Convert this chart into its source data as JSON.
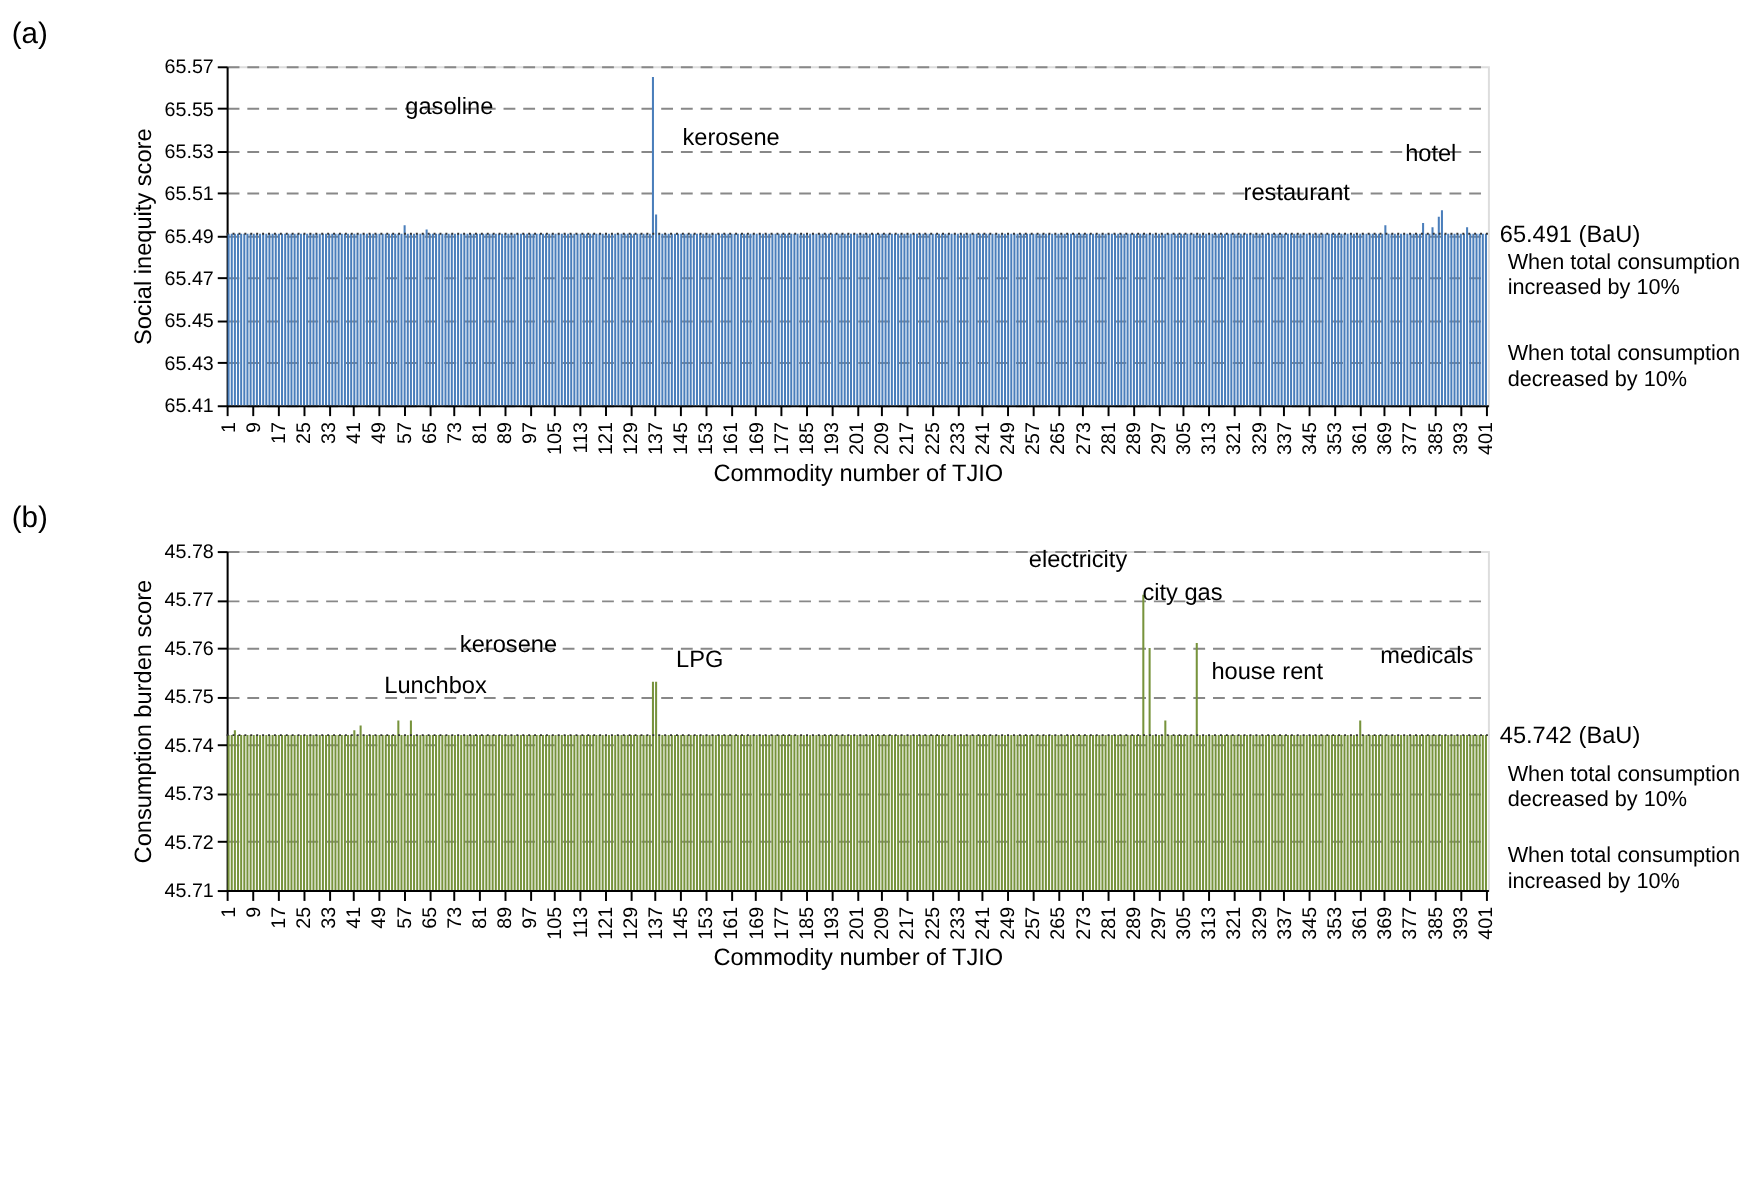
{
  "chart_data": [
    {
      "type": "bar",
      "title": "(a)",
      "xlabel": "Commodity number of TJIO",
      "ylabel": "Social inequity score",
      "color": "#4a7ebb",
      "categories": [
        "1",
        null,
        null,
        null,
        null,
        null,
        null,
        null,
        "9",
        null,
        null,
        null,
        null,
        null,
        null,
        null,
        "17",
        null,
        null,
        null,
        null,
        null,
        null,
        null,
        "25",
        null,
        null,
        null,
        null,
        null,
        null,
        null,
        "33",
        null,
        null,
        null,
        null,
        null,
        null,
        null,
        "41",
        null,
        null,
        null,
        null,
        null,
        null,
        null,
        "49",
        null,
        null,
        null,
        null,
        null,
        null,
        null,
        "57",
        null,
        null,
        null,
        null,
        null,
        null,
        null,
        "65",
        null,
        null,
        null,
        null,
        null,
        null,
        null,
        "73",
        null,
        null,
        null,
        null,
        null,
        null,
        null,
        "81",
        null,
        null,
        null,
        null,
        null,
        null,
        null,
        "89",
        null,
        null,
        null,
        null,
        null,
        null,
        null,
        "97",
        null,
        null,
        null,
        null,
        null,
        null,
        null,
        "105",
        null,
        null,
        null,
        null,
        null,
        null,
        null,
        "113",
        null,
        null,
        null,
        null,
        null,
        null,
        null,
        "121",
        null,
        null,
        null,
        null,
        null,
        null,
        null,
        "129",
        null,
        null,
        null,
        null,
        null,
        null,
        null,
        "137",
        null,
        null,
        null,
        null,
        null,
        null,
        null,
        "145",
        null,
        null,
        null,
        null,
        null,
        null,
        null,
        "153",
        null,
        null,
        null,
        null,
        null,
        null,
        null,
        "161",
        null,
        null,
        null,
        null,
        null,
        null,
        null,
        "169",
        null,
        null,
        null,
        null,
        null,
        null,
        null,
        "177",
        null,
        null,
        null,
        null,
        null,
        null,
        null,
        "185",
        null,
        null,
        null,
        null,
        null,
        null,
        null,
        "193",
        null,
        null,
        null,
        null,
        null,
        null,
        null,
        "201",
        null,
        null,
        null,
        null,
        null,
        null,
        null,
        "209",
        null,
        null,
        null,
        null,
        null,
        null,
        null,
        "217",
        null,
        null,
        null,
        null,
        null,
        null,
        null,
        "225",
        null,
        null,
        null,
        null,
        null,
        null,
        null,
        "233",
        null,
        null,
        null,
        null,
        null,
        null,
        null,
        "241",
        null,
        null,
        null,
        null,
        null,
        null,
        null,
        "249",
        null,
        null,
        null,
        null,
        null,
        null,
        null,
        "257",
        null,
        null,
        null,
        null,
        null,
        null,
        null,
        "265",
        null,
        null,
        null,
        null,
        null,
        null,
        null,
        "273",
        null,
        null,
        null,
        null,
        null,
        null,
        null,
        "281",
        null,
        null,
        null,
        null,
        null,
        null,
        null,
        "289",
        null,
        null,
        null,
        null,
        null,
        null,
        null,
        "297",
        null,
        null,
        null,
        null,
        null,
        null,
        null,
        "305",
        null,
        null,
        null,
        null,
        null,
        null,
        null,
        "313",
        null,
        null,
        null,
        null,
        null,
        null,
        null,
        "321",
        null,
        null,
        null,
        null,
        null,
        null,
        null,
        "329",
        null,
        null,
        null,
        null,
        null,
        null,
        null,
        "337",
        null,
        null,
        null,
        null,
        null,
        null,
        null,
        "345",
        null,
        null,
        null,
        null,
        null,
        null,
        null,
        "353",
        null,
        null,
        null,
        null,
        null,
        null,
        null,
        "361",
        null,
        null,
        null,
        null,
        null,
        null,
        null,
        "369",
        null,
        null,
        null,
        null,
        null,
        null,
        null,
        "377",
        null,
        null,
        null,
        null,
        null,
        null,
        null,
        "385",
        null,
        null,
        null,
        null,
        null,
        null,
        null,
        "393",
        null,
        null,
        null,
        null,
        null,
        null,
        null,
        "401"
      ],
      "values": [
        65.491,
        65.491,
        65.491,
        65.491,
        65.491,
        65.491,
        65.491,
        65.491,
        65.491,
        65.491,
        65.491,
        65.491,
        65.491,
        65.491,
        65.491,
        65.491,
        65.491,
        65.491,
        65.491,
        65.491,
        65.491,
        65.491,
        65.491,
        65.491,
        65.491,
        65.491,
        65.491,
        65.491,
        65.491,
        65.491,
        65.491,
        65.491,
        65.491,
        65.491,
        65.491,
        65.491,
        65.491,
        65.491,
        65.491,
        65.491,
        65.491,
        65.491,
        65.491,
        65.491,
        65.491,
        65.491,
        65.491,
        65.491,
        65.491,
        65.491,
        65.491,
        65.491,
        65.491,
        65.491,
        65.491,
        65.491,
        65.495,
        65.491,
        65.491,
        65.491,
        65.491,
        65.491,
        65.491,
        65.493,
        65.491,
        65.491,
        65.491,
        65.491,
        65.491,
        65.491,
        65.491,
        65.491,
        65.491,
        65.491,
        65.491,
        65.491,
        65.491,
        65.491,
        65.491,
        65.491,
        65.491,
        65.491,
        65.491,
        65.491,
        65.491,
        65.491,
        65.491,
        65.491,
        65.491,
        65.491,
        65.491,
        65.491,
        65.491,
        65.491,
        65.491,
        65.491,
        65.491,
        65.491,
        65.491,
        65.491,
        65.491,
        65.491,
        65.491,
        65.491,
        65.491,
        65.491,
        65.491,
        65.491,
        65.491,
        65.491,
        65.491,
        65.491,
        65.491,
        65.491,
        65.491,
        65.491,
        65.491,
        65.491,
        65.491,
        65.491,
        65.491,
        65.491,
        65.491,
        65.491,
        65.491,
        65.491,
        65.491,
        65.491,
        65.491,
        65.491,
        65.491,
        65.491,
        65.491,
        65.491,
        65.491,
        65.565,
        65.5,
        65.491,
        65.491,
        65.491,
        65.491,
        65.491,
        65.491,
        65.491,
        65.491,
        65.491,
        65.491,
        65.491,
        65.491,
        65.491,
        65.491,
        65.491,
        65.491,
        65.491,
        65.491,
        65.491,
        65.491,
        65.491,
        65.491,
        65.491,
        65.491,
        65.491,
        65.491,
        65.491,
        65.491,
        65.491,
        65.491,
        65.491,
        65.491,
        65.491,
        65.491,
        65.491,
        65.491,
        65.491,
        65.491,
        65.491,
        65.491,
        65.491,
        65.491,
        65.491,
        65.491,
        65.491,
        65.491,
        65.491,
        65.491,
        65.491,
        65.491,
        65.491,
        65.491,
        65.491,
        65.491,
        65.491,
        65.491,
        65.491,
        65.491,
        65.491,
        65.491,
        65.491,
        65.491,
        65.491,
        65.491,
        65.491,
        65.491,
        65.491,
        65.491,
        65.491,
        65.491,
        65.491,
        65.491,
        65.491,
        65.491,
        65.491,
        65.491,
        65.491,
        65.491,
        65.491,
        65.491,
        65.491,
        65.491,
        65.491,
        65.491,
        65.491,
        65.491,
        65.491,
        65.491,
        65.491,
        65.491,
        65.491,
        65.491,
        65.491,
        65.491,
        65.491,
        65.491,
        65.491,
        65.491,
        65.491,
        65.491,
        65.491,
        65.491,
        65.491,
        65.491,
        65.491,
        65.491,
        65.491,
        65.491,
        65.491,
        65.491,
        65.491,
        65.491,
        65.491,
        65.491,
        65.491,
        65.491,
        65.491,
        65.491,
        65.491,
        65.491,
        65.491,
        65.491,
        65.491,
        65.491,
        65.491,
        65.491,
        65.491,
        65.491,
        65.491,
        65.491,
        65.491,
        65.491,
        65.491,
        65.491,
        65.491,
        65.491,
        65.491,
        65.491,
        65.491,
        65.491,
        65.491,
        65.491,
        65.491,
        65.491,
        65.491,
        65.491,
        65.491,
        65.491,
        65.491,
        65.491,
        65.491,
        65.491,
        65.491,
        65.491,
        65.491,
        65.491,
        65.491,
        65.491,
        65.491,
        65.491,
        65.491,
        65.491,
        65.491,
        65.491,
        65.491,
        65.491,
        65.491,
        65.491,
        65.491,
        65.491,
        65.491,
        65.491,
        65.491,
        65.491,
        65.491,
        65.491,
        65.491,
        65.491,
        65.491,
        65.491,
        65.491,
        65.491,
        65.491,
        65.491,
        65.491,
        65.491,
        65.491,
        65.491,
        65.491,
        65.491,
        65.491,
        65.491,
        65.491,
        65.491,
        65.491,
        65.491,
        65.491,
        65.491,
        65.491,
        65.491,
        65.491,
        65.491,
        65.491,
        65.491,
        65.491,
        65.491,
        65.491,
        65.491,
        65.491,
        65.491,
        65.491,
        65.491,
        65.491,
        65.491,
        65.491,
        65.491,
        65.491,
        65.491,
        65.491,
        65.491,
        65.491,
        65.491,
        65.491,
        65.491,
        65.491,
        65.491,
        65.491,
        65.491,
        65.491,
        65.491,
        65.491,
        65.495,
        65.491,
        65.491,
        65.491,
        65.491,
        65.491,
        65.491,
        65.491,
        65.491,
        65.491,
        65.491,
        65.491,
        65.496,
        65.491,
        65.491,
        65.494,
        65.491,
        65.499,
        65.502,
        65.491,
        65.491,
        65.491,
        65.491,
        65.491,
        65.491,
        65.491,
        65.494,
        65.491,
        65.491,
        65.491,
        65.491,
        65.491,
        65.491
      ],
      "ylim": [
        65.41,
        65.57
      ],
      "yticks": [
        65.41,
        65.43,
        65.45,
        65.47,
        65.49,
        65.51,
        65.53,
        65.55,
        65.57
      ],
      "grid": "y",
      "ref_lines": [
        {
          "axis": "y",
          "value": 65.491,
          "label": "65.491 (BaU)",
          "line_style": "dotted"
        }
      ],
      "annotations": [
        "gasoline",
        "kerosene",
        "restaurant",
        "hotel",
        "When total consumption increased by 10%",
        "When total consumption decreased by 10%"
      ]
    },
    {
      "type": "bar",
      "title": "(b)",
      "xlabel": "Commodity number of TJIO",
      "ylabel": "Consumption burden score",
      "color": "#77933c",
      "categories": [
        "1",
        null,
        null,
        null,
        null,
        null,
        null,
        null,
        "9",
        null,
        null,
        null,
        null,
        null,
        null,
        null,
        "17",
        null,
        null,
        null,
        null,
        null,
        null,
        null,
        "25",
        null,
        null,
        null,
        null,
        null,
        null,
        null,
        "33",
        null,
        null,
        null,
        null,
        null,
        null,
        null,
        "41",
        null,
        null,
        null,
        null,
        null,
        null,
        null,
        "49",
        null,
        null,
        null,
        null,
        null,
        null,
        null,
        "57",
        null,
        null,
        null,
        null,
        null,
        null,
        null,
        "65",
        null,
        null,
        null,
        null,
        null,
        null,
        null,
        "73",
        null,
        null,
        null,
        null,
        null,
        null,
        null,
        "81",
        null,
        null,
        null,
        null,
        null,
        null,
        null,
        "89",
        null,
        null,
        null,
        null,
        null,
        null,
        null,
        "97",
        null,
        null,
        null,
        null,
        null,
        null,
        null,
        "105",
        null,
        null,
        null,
        null,
        null,
        null,
        null,
        "113",
        null,
        null,
        null,
        null,
        null,
        null,
        null,
        "121",
        null,
        null,
        null,
        null,
        null,
        null,
        null,
        "129",
        null,
        null,
        null,
        null,
        null,
        null,
        null,
        "137",
        null,
        null,
        null,
        null,
        null,
        null,
        null,
        "145",
        null,
        null,
        null,
        null,
        null,
        null,
        null,
        "153",
        null,
        null,
        null,
        null,
        null,
        null,
        null,
        "161",
        null,
        null,
        null,
        null,
        null,
        null,
        null,
        "169",
        null,
        null,
        null,
        null,
        null,
        null,
        null,
        "177",
        null,
        null,
        null,
        null,
        null,
        null,
        null,
        "185",
        null,
        null,
        null,
        null,
        null,
        null,
        null,
        "193",
        null,
        null,
        null,
        null,
        null,
        null,
        null,
        "201",
        null,
        null,
        null,
        null,
        null,
        null,
        null,
        "209",
        null,
        null,
        null,
        null,
        null,
        null,
        null,
        "217",
        null,
        null,
        null,
        null,
        null,
        null,
        null,
        "225",
        null,
        null,
        null,
        null,
        null,
        null,
        null,
        "233",
        null,
        null,
        null,
        null,
        null,
        null,
        null,
        "241",
        null,
        null,
        null,
        null,
        null,
        null,
        null,
        "249",
        null,
        null,
        null,
        null,
        null,
        null,
        null,
        "257",
        null,
        null,
        null,
        null,
        null,
        null,
        null,
        "265",
        null,
        null,
        null,
        null,
        null,
        null,
        null,
        "273",
        null,
        null,
        null,
        null,
        null,
        null,
        null,
        "281",
        null,
        null,
        null,
        null,
        null,
        null,
        null,
        "289",
        null,
        null,
        null,
        null,
        null,
        null,
        null,
        "297",
        null,
        null,
        null,
        null,
        null,
        null,
        null,
        "305",
        null,
        null,
        null,
        null,
        null,
        null,
        null,
        "313",
        null,
        null,
        null,
        null,
        null,
        null,
        null,
        "321",
        null,
        null,
        null,
        null,
        null,
        null,
        null,
        "329",
        null,
        null,
        null,
        null,
        null,
        null,
        null,
        "337",
        null,
        null,
        null,
        null,
        null,
        null,
        null,
        "345",
        null,
        null,
        null,
        null,
        null,
        null,
        null,
        "353",
        null,
        null,
        null,
        null,
        null,
        null,
        null,
        "361",
        null,
        null,
        null,
        null,
        null,
        null,
        null,
        "369",
        null,
        null,
        null,
        null,
        null,
        null,
        null,
        "377",
        null,
        null,
        null,
        null,
        null,
        null,
        null,
        "385",
        null,
        null,
        null,
        null,
        null,
        null,
        null,
        "393",
        null,
        null,
        null,
        null,
        null,
        null,
        null,
        "401"
      ],
      "values": [
        45.742,
        45.742,
        45.743,
        45.742,
        45.742,
        45.742,
        45.742,
        45.742,
        45.742,
        45.742,
        45.742,
        45.742,
        45.742,
        45.742,
        45.742,
        45.742,
        45.742,
        45.742,
        45.742,
        45.742,
        45.742,
        45.742,
        45.742,
        45.742,
        45.742,
        45.742,
        45.742,
        45.742,
        45.742,
        45.742,
        45.742,
        45.742,
        45.742,
        45.742,
        45.742,
        45.742,
        45.742,
        45.742,
        45.742,
        45.742,
        45.743,
        45.742,
        45.744,
        45.742,
        45.742,
        45.742,
        45.742,
        45.742,
        45.742,
        45.742,
        45.742,
        45.742,
        45.742,
        45.742,
        45.745,
        45.742,
        45.742,
        45.742,
        45.745,
        45.742,
        45.742,
        45.742,
        45.742,
        45.742,
        45.742,
        45.742,
        45.742,
        45.742,
        45.742,
        45.742,
        45.742,
        45.742,
        45.742,
        45.742,
        45.742,
        45.742,
        45.742,
        45.742,
        45.742,
        45.742,
        45.742,
        45.742,
        45.742,
        45.742,
        45.742,
        45.742,
        45.742,
        45.742,
        45.742,
        45.742,
        45.742,
        45.742,
        45.742,
        45.742,
        45.742,
        45.742,
        45.742,
        45.742,
        45.742,
        45.742,
        45.742,
        45.742,
        45.742,
        45.742,
        45.742,
        45.742,
        45.742,
        45.742,
        45.742,
        45.742,
        45.742,
        45.742,
        45.742,
        45.742,
        45.742,
        45.742,
        45.742,
        45.742,
        45.742,
        45.742,
        45.742,
        45.742,
        45.742,
        45.742,
        45.742,
        45.742,
        45.742,
        45.742,
        45.742,
        45.742,
        45.742,
        45.742,
        45.742,
        45.742,
        45.742,
        45.753,
        45.753,
        45.742,
        45.742,
        45.742,
        45.742,
        45.742,
        45.742,
        45.742,
        45.742,
        45.742,
        45.742,
        45.742,
        45.742,
        45.742,
        45.742,
        45.742,
        45.742,
        45.742,
        45.742,
        45.742,
        45.742,
        45.742,
        45.742,
        45.742,
        45.742,
        45.742,
        45.742,
        45.742,
        45.742,
        45.742,
        45.742,
        45.742,
        45.742,
        45.742,
        45.742,
        45.742,
        45.742,
        45.742,
        45.742,
        45.742,
        45.742,
        45.742,
        45.742,
        45.742,
        45.742,
        45.742,
        45.742,
        45.742,
        45.742,
        45.742,
        45.742,
        45.742,
        45.742,
        45.742,
        45.742,
        45.742,
        45.742,
        45.742,
        45.742,
        45.742,
        45.742,
        45.742,
        45.742,
        45.742,
        45.742,
        45.742,
        45.742,
        45.742,
        45.742,
        45.742,
        45.742,
        45.742,
        45.742,
        45.742,
        45.742,
        45.742,
        45.742,
        45.742,
        45.742,
        45.742,
        45.742,
        45.742,
        45.742,
        45.742,
        45.742,
        45.742,
        45.742,
        45.742,
        45.742,
        45.742,
        45.742,
        45.742,
        45.742,
        45.742,
        45.742,
        45.742,
        45.742,
        45.742,
        45.742,
        45.742,
        45.742,
        45.742,
        45.742,
        45.742,
        45.742,
        45.742,
        45.742,
        45.742,
        45.742,
        45.742,
        45.742,
        45.742,
        45.742,
        45.742,
        45.742,
        45.742,
        45.742,
        45.742,
        45.742,
        45.742,
        45.742,
        45.742,
        45.742,
        45.742,
        45.742,
        45.742,
        45.742,
        45.742,
        45.742,
        45.742,
        45.742,
        45.742,
        45.742,
        45.742,
        45.742,
        45.742,
        45.742,
        45.742,
        45.742,
        45.742,
        45.742,
        45.742,
        45.742,
        45.742,
        45.742,
        45.742,
        45.742,
        45.742,
        45.742,
        45.742,
        45.742,
        45.742,
        45.742,
        45.742,
        45.742,
        45.771,
        45.742,
        45.76,
        45.742,
        45.742,
        45.742,
        45.742,
        45.745,
        45.742,
        45.742,
        45.742,
        45.742,
        45.742,
        45.742,
        45.742,
        45.742,
        45.742,
        45.761,
        45.742,
        45.742,
        45.742,
        45.742,
        45.742,
        45.742,
        45.742,
        45.742,
        45.742,
        45.742,
        45.742,
        45.742,
        45.742,
        45.742,
        45.742,
        45.742,
        45.742,
        45.742,
        45.742,
        45.742,
        45.742,
        45.742,
        45.742,
        45.742,
        45.742,
        45.742,
        45.742,
        45.742,
        45.742,
        45.742,
        45.742,
        45.742,
        45.742,
        45.742,
        45.742,
        45.742,
        45.742,
        45.742,
        45.742,
        45.742,
        45.742,
        45.742,
        45.742,
        45.742,
        45.742,
        45.742,
        45.742,
        45.742,
        45.742,
        45.742,
        45.742,
        45.745,
        45.742,
        45.742,
        45.742,
        45.742,
        45.742,
        45.742,
        45.742,
        45.742,
        45.742,
        45.742,
        45.742,
        45.742,
        45.742,
        45.742,
        45.742,
        45.742,
        45.742,
        45.742,
        45.742,
        45.742,
        45.742,
        45.742,
        45.742,
        45.742,
        45.742,
        45.742,
        45.742,
        45.742,
        45.742,
        45.742,
        45.742,
        45.742,
        45.742,
        45.742,
        45.742,
        45.742,
        45.742,
        45.742,
        45.742,
        45.742
      ],
      "ylim": [
        45.71,
        45.78
      ],
      "yticks": [
        45.71,
        45.72,
        45.73,
        45.74,
        45.75,
        45.76,
        45.77,
        45.78
      ],
      "grid": "y",
      "ref_lines": [
        {
          "axis": "y",
          "value": 45.742,
          "label": "45.742 (BaU)",
          "line_style": "dotted"
        }
      ],
      "annotations": [
        "Lunchbox",
        "kerosene",
        "LPG",
        "electricity",
        "city gas",
        "house rent",
        "medicals",
        "When total consumption decreased by 10%",
        "When total consumption increased by 10%"
      ]
    }
  ]
}
